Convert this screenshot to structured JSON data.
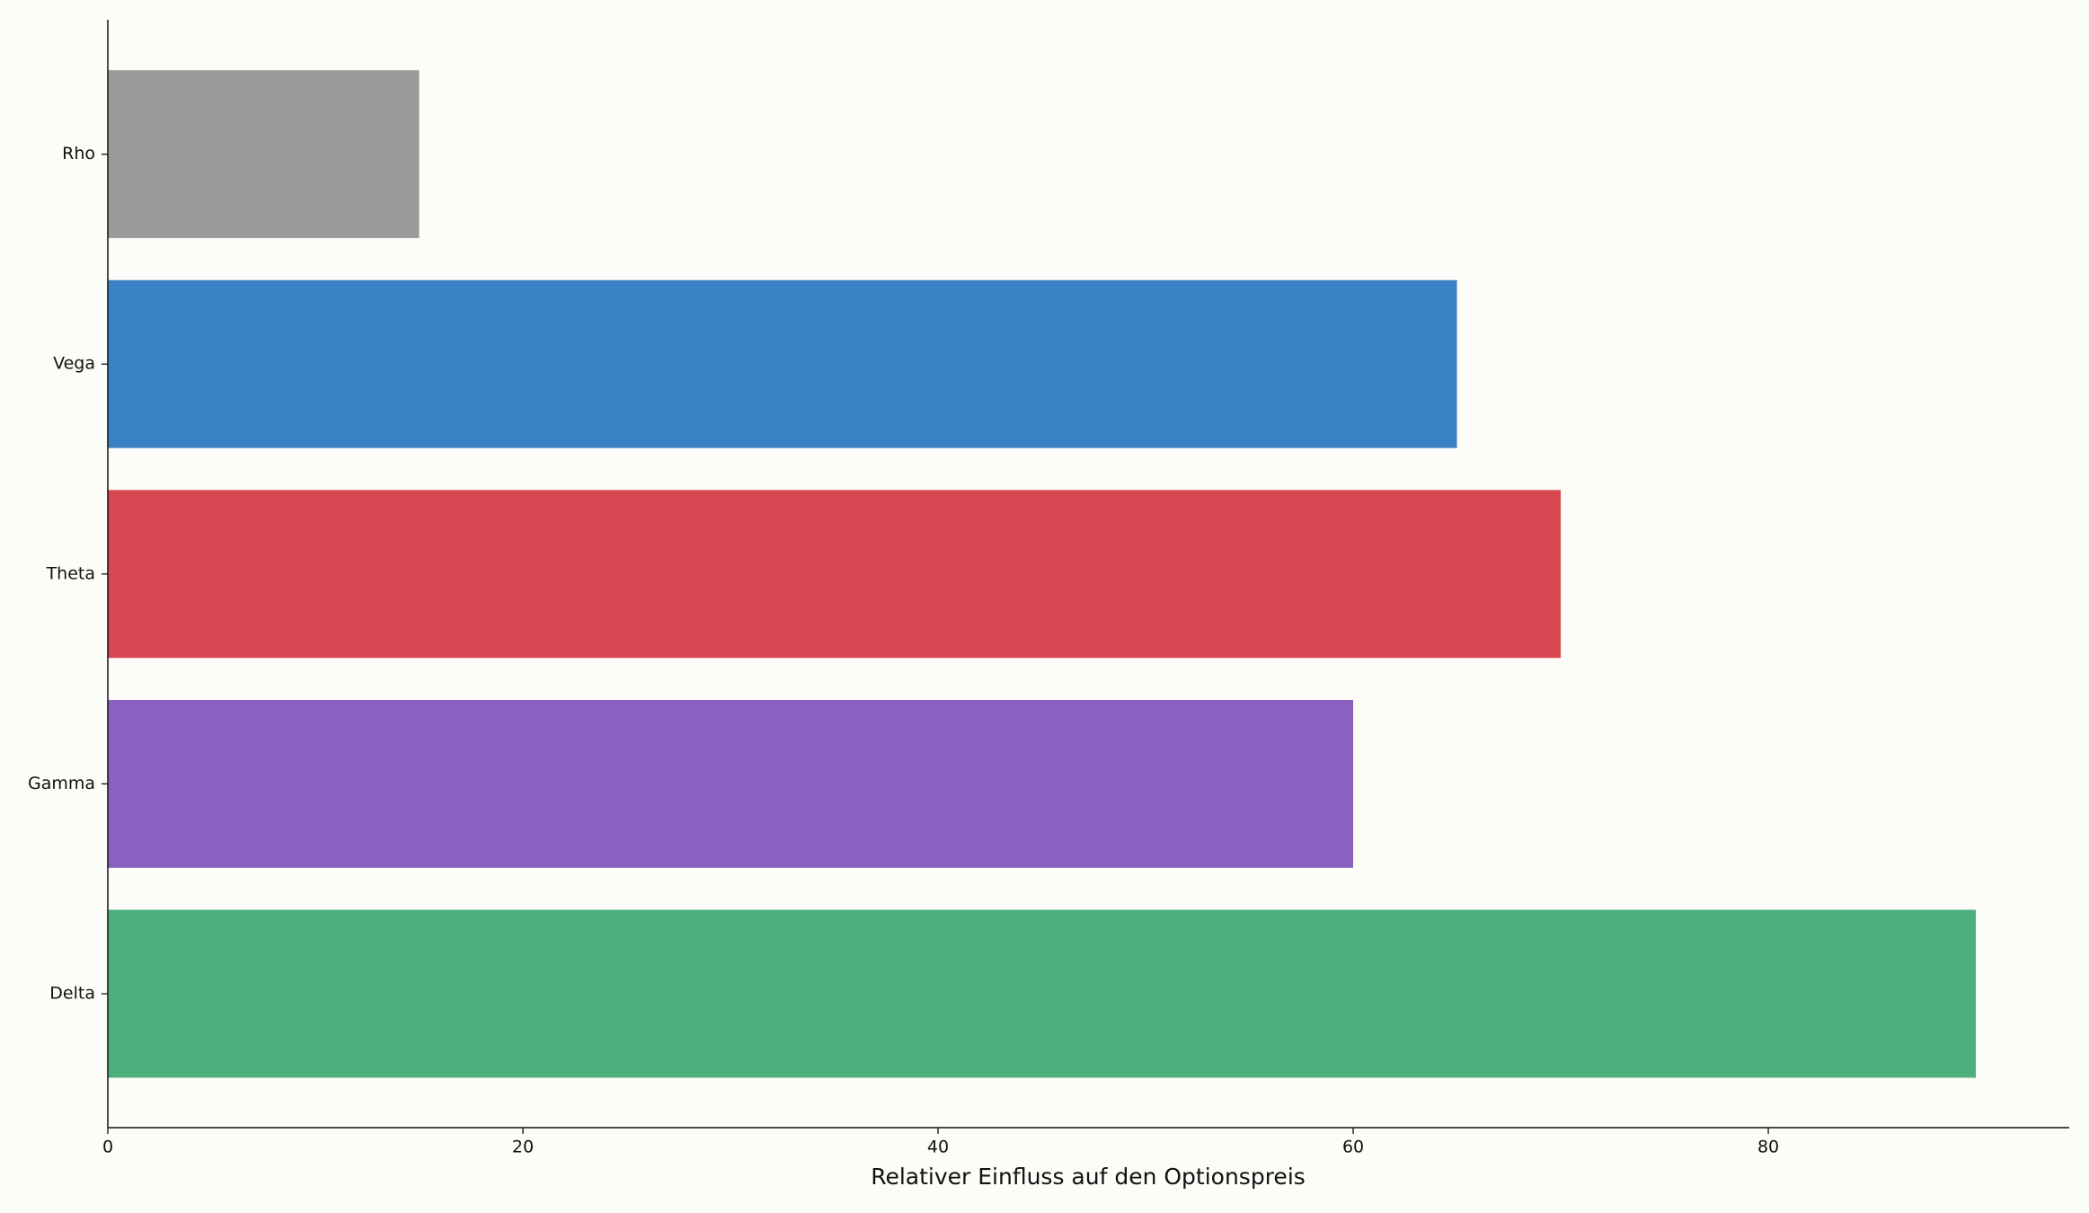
{
  "chart_data": {
    "type": "barh",
    "xlabel": "Relativer Einfluss auf den Optionspreis",
    "categories": [
      "Delta",
      "Gamma",
      "Theta",
      "Vega",
      "Rho"
    ],
    "values": [
      90,
      60,
      70,
      65,
      15
    ],
    "colors": [
      "#4daf7c",
      "#8a61c0",
      "#d84651",
      "#3b82c4",
      "#9b9b9b"
    ],
    "xlim": [
      0,
      94.5
    ],
    "xticks": [
      0,
      20,
      40,
      60,
      80
    ],
    "grid": false
  }
}
